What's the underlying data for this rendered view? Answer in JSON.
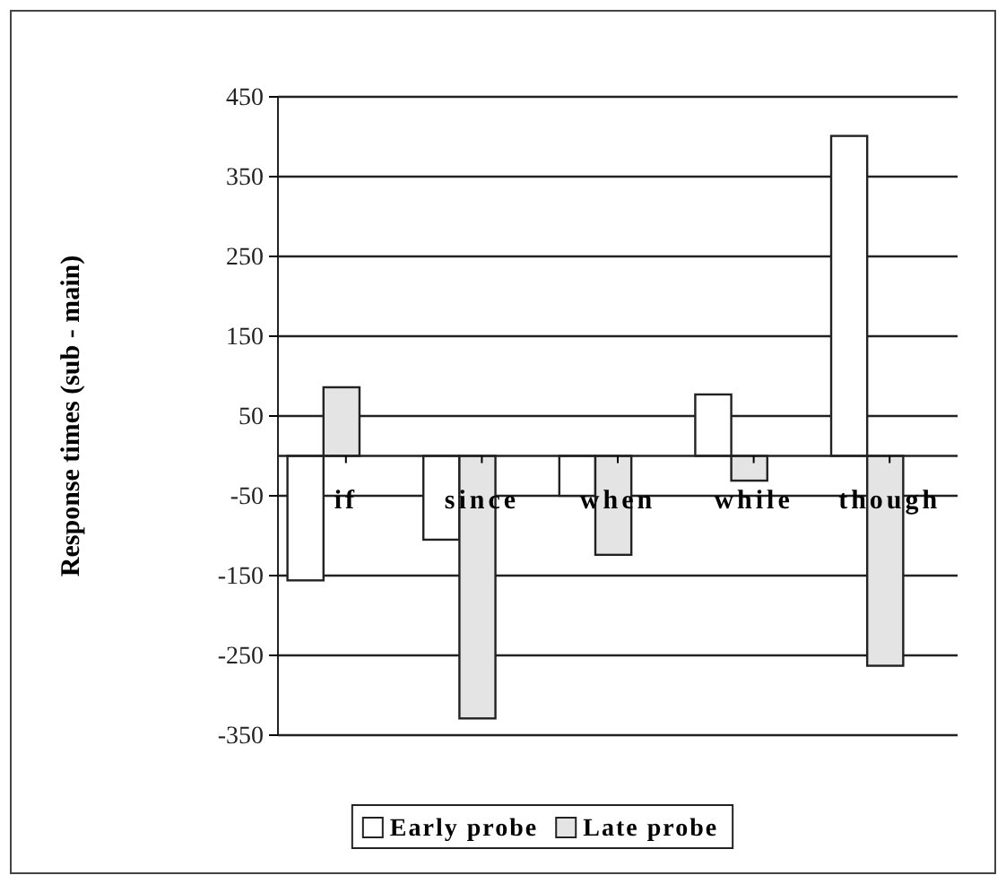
{
  "chart_data": {
    "type": "bar",
    "ylabel": "Response times (sub - main)",
    "categories": [
      "if",
      "since",
      "when",
      "while",
      "though"
    ],
    "series": [
      {
        "name": "Early probe",
        "color": "#ffffff",
        "values": [
          -156,
          -105,
          -50,
          77,
          401
        ]
      },
      {
        "name": "Late probe",
        "color": "#e4e4e4",
        "values": [
          86,
          -329,
          -124,
          -31,
          -263
        ]
      }
    ],
    "ylim": [
      -350,
      450
    ],
    "yticks": [
      -350,
      -250,
      -150,
      -50,
      50,
      150,
      250,
      350,
      450
    ],
    "grid": "y",
    "legend": "bottom"
  }
}
